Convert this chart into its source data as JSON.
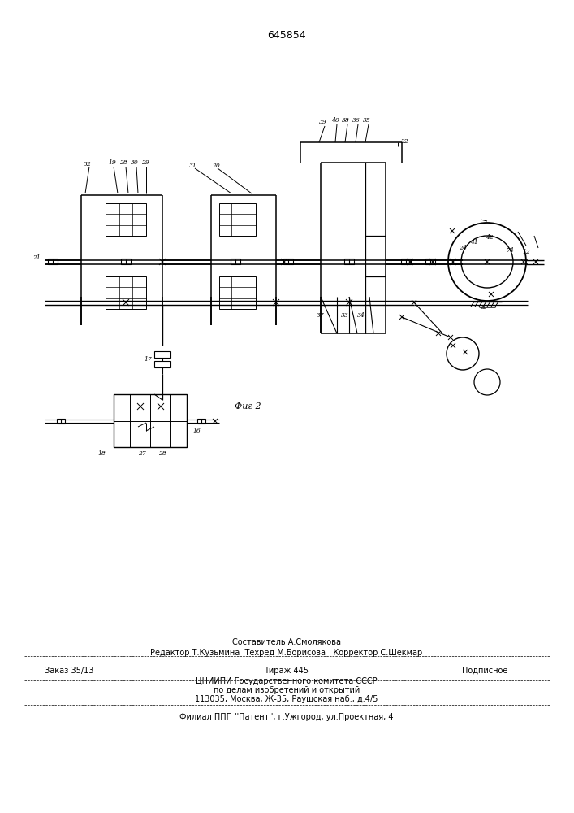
{
  "title": "645854",
  "fig_label": "Фиг 2",
  "bg_color": "#ffffff",
  "line_color": "#000000",
  "composer_line": "Составитель А.Смолякова",
  "editor_line": "Редактор Т.Кузьмина  Техред М.Борисова   Корректор С.Шекмар",
  "order_text": "Заказ 35/13",
  "tirazh_text": "Тираж 445",
  "podpisnoe_text": "Подписное",
  "institute_line1": "ЦНИИПИ Государственного комитета СССР",
  "institute_line2": "по делам изобретений и открытий",
  "institute_line3": "113035, Москва, Ж-35, Раушская наб., д.4/5",
  "filial_line": "Филиал ППП ''Патент'', г.Ужгород, ул.Проектная, 4"
}
